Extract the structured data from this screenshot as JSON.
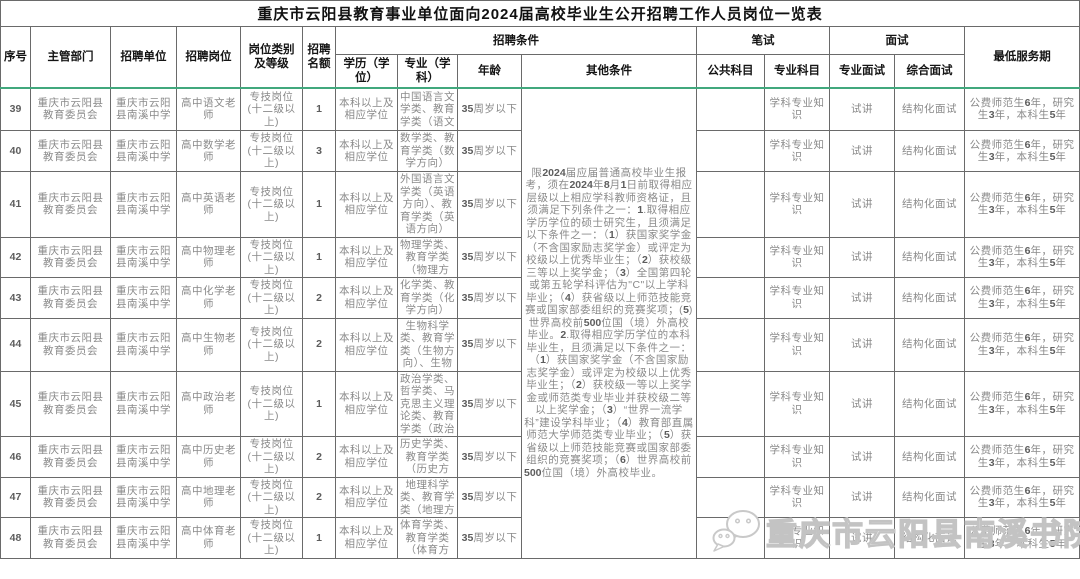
{
  "title": "重庆市云阳县教育事业单位面向2024届高校毕业生公开招聘工作人员岗位一览表",
  "columns": {
    "xuhao": "序号",
    "zhuguanbumen": "主管部门",
    "zhaopin_danwei": "招聘单位",
    "zhaopin_gangwei": "招聘岗位",
    "gangwei_leibie": "岗位类别及等级",
    "zhaopin_minge": "招聘名额",
    "zhaopin_tiaojian": "招聘条件",
    "xueli": "学历（学位）",
    "zhuanye": "专业（学科）",
    "nianling": "年龄",
    "qita_tiaojian": "其他条件",
    "bishi": "笔试",
    "gonggong_kemu": "公共科目",
    "zhuanye_kemu": "专业科目",
    "mianshi": "面试",
    "zhuanye_mianshi": "专业面试",
    "zonghe_mianshi": "综合面试",
    "zuidi_fuwuqi": "最低服务期"
  },
  "other_conditions": "限2024届应届普通高校毕业生报考，须在2024年8月1日前取得相应层级以上相应学科教师资格证，且须满足下列条件之一：1.取得相应学历学位的硕士研究生，且须满足以下条件之一：（1）获国家奖学金（不含国家励志奖学金）或评定为校级以上优秀毕业生；（2）获校级三等以上奖学金；（3）全国第四轮或第五轮学科评估为\"C\"以上学科毕业；（4）获省级以上师范技能竞赛或国家部委组织的竞赛奖项；(5)世界高校前500位国（境）外高校毕业。2.取得相应学历学位的本科毕业生，且须满足以下条件之一：（1）获国家奖学金（不含国家励志奖学金）或评定为校级以上优秀毕业生；（2）获校级一等以上奖学金或师范类专业毕业并获校级二等以上奖学金；（3）“世界一流学科”建设学科毕业；（4）教育部直属师范大学师范类专业毕业；（5）获省级以上师范技能竞赛或国家部委组织的竞赛奖项；（6）世界高校前500位国（境）外高校毕业。",
  "rows": [
    {
      "id": "39",
      "dept": "重庆市云阳县教育委员会",
      "unit": "重庆市云阳县南溪中学",
      "post": "高中语文老师",
      "category": "专技岗位(十二级以上)",
      "quota": "1",
      "degree": "本科以上及相应学位",
      "major": "中国语言文学类、教育学类（语文",
      "age": "35周岁以下",
      "public_subject": "",
      "major_subject": "学科专业知识",
      "major_interview": "试讲",
      "comprehensive_interview": "结构化面试",
      "service": "公费师范生6年，研究生3年，本科生5年"
    },
    {
      "id": "40",
      "dept": "重庆市云阳县教育委员会",
      "unit": "重庆市云阳县南溪中学",
      "post": "高中数学老师",
      "category": "专技岗位(十二级以上)",
      "quota": "3",
      "degree": "本科以上及相应学位",
      "major": "数学类、教育学类（数学方向）",
      "age": "35周岁以下",
      "public_subject": "",
      "major_subject": "学科专业知识",
      "major_interview": "试讲",
      "comprehensive_interview": "结构化面试",
      "service": "公费师范生6年，研究生3年，本科生5年"
    },
    {
      "id": "41",
      "dept": "重庆市云阳县教育委员会",
      "unit": "重庆市云阳县南溪中学",
      "post": "高中英语老师",
      "category": "专技岗位(十二级以上)",
      "quota": "1",
      "degree": "本科以上及相应学位",
      "major": "外国语言文学类（英语方向）、教育学类（英语方向）",
      "age": "35周岁以下",
      "public_subject": "",
      "major_subject": "学科专业知识",
      "major_interview": "试讲",
      "comprehensive_interview": "结构化面试",
      "service": "公费师范生6年，研究生3年，本科生5年"
    },
    {
      "id": "42",
      "dept": "重庆市云阳县教育委员会",
      "unit": "重庆市云阳县南溪中学",
      "post": "高中物理老师",
      "category": "专技岗位(十二级以上)",
      "quota": "1",
      "degree": "本科以上及相应学位",
      "major": "物理学类、教育学类（物理方",
      "age": "35周岁以下",
      "public_subject": "",
      "major_subject": "学科专业知识",
      "major_interview": "试讲",
      "comprehensive_interview": "结构化面试",
      "service": "公费师范生6年，研究生3年，本科生5年"
    },
    {
      "id": "43",
      "dept": "重庆市云阳县教育委员会",
      "unit": "重庆市云阳县南溪中学",
      "post": "高中化学老师",
      "category": "专技岗位(十二级以上)",
      "quota": "2",
      "degree": "本科以上及相应学位",
      "major": "化学类、教育学类（化学方向）",
      "age": "35周岁以下",
      "public_subject": "",
      "major_subject": "学科专业知识",
      "major_interview": "试讲",
      "comprehensive_interview": "结构化面试",
      "service": "公费师范生6年，研究生3年，本科生5年"
    },
    {
      "id": "44",
      "dept": "重庆市云阳县教育委员会",
      "unit": "重庆市云阳县南溪中学",
      "post": "高中生物老师",
      "category": "专技岗位(十二级以上)",
      "quota": "2",
      "degree": "本科以上及相应学位",
      "major": "生物科学类、教育学类（生物方向）、生物",
      "age": "35周岁以下",
      "public_subject": "",
      "major_subject": "学科专业知识",
      "major_interview": "试讲",
      "comprehensive_interview": "结构化面试",
      "service": "公费师范生6年，研究生3年，本科生5年"
    },
    {
      "id": "45",
      "dept": "重庆市云阳县教育委员会",
      "unit": "重庆市云阳县南溪中学",
      "post": "高中政治老师",
      "category": "专技岗位(十二级以上)",
      "quota": "1",
      "degree": "本科以上及相应学位",
      "major": "政治学类、哲学类、马克思主义理论类、教育学类（政治",
      "age": "35周岁以下",
      "public_subject": "",
      "major_subject": "学科专业知识",
      "major_interview": "试讲",
      "comprehensive_interview": "结构化面试",
      "service": "公费师范生6年，研究生3年，本科生5年"
    },
    {
      "id": "46",
      "dept": "重庆市云阳县教育委员会",
      "unit": "重庆市云阳县南溪中学",
      "post": "高中历史老师",
      "category": "专技岗位(十二级以上)",
      "quota": "2",
      "degree": "本科以上及相应学位",
      "major": "历史学类、教育学类（历史方",
      "age": "35周岁以下",
      "public_subject": "",
      "major_subject": "学科专业知识",
      "major_interview": "试讲",
      "comprehensive_interview": "结构化面试",
      "service": "公费师范生6年，研究生3年，本科生5年"
    },
    {
      "id": "47",
      "dept": "重庆市云阳县教育委员会",
      "unit": "重庆市云阳县南溪中学",
      "post": "高中地理老师",
      "category": "专技岗位(十二级以上)",
      "quota": "2",
      "degree": "本科以上及相应学位",
      "major": "地理科学类、教育学类（地理方",
      "age": "35周岁以下",
      "public_subject": "",
      "major_subject": "学科专业知识",
      "major_interview": "试讲",
      "comprehensive_interview": "结构化面试",
      "service": "公费师范生6年，研究生3年，本科生5年"
    },
    {
      "id": "48",
      "dept": "重庆市云阳县教育委员会",
      "unit": "重庆市云阳县南溪中学",
      "post": "高中体育老师",
      "category": "专技岗位(十二级以上)",
      "quota": "1",
      "degree": "本科以上及相应学位",
      "major": "体育学类、教育学类（体育方",
      "age": "35周岁以下",
      "public_subject": "",
      "major_subject": "学科专业知识",
      "major_interview": "试讲",
      "comprehensive_interview": "结构化面试",
      "service": "公费师范生6年，研究生3年，本科生5年"
    }
  ],
  "watermark": {
    "text": "重庆市云阳县南溪书院",
    "icon": "wechat-icon"
  },
  "colors": {
    "green_line": "#41a87d",
    "body_text": "#8a8a8a",
    "header_text": "#141414",
    "border": "#6a6a6a",
    "watermark": "#c3c3c3"
  }
}
